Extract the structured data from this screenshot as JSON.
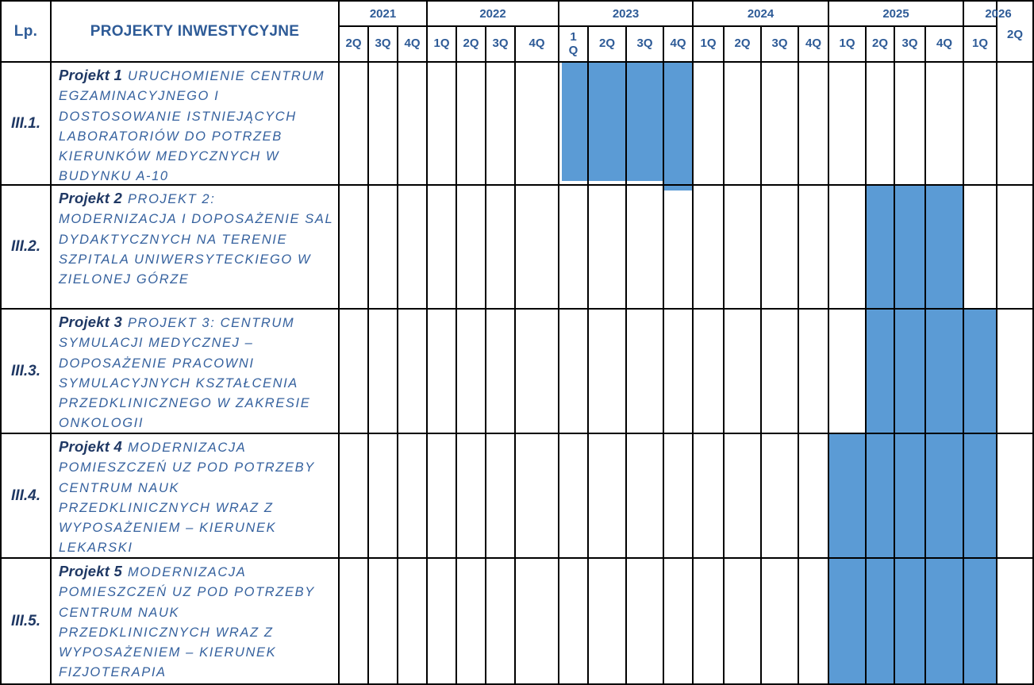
{
  "table": {
    "lp_header": "Lp.",
    "projects_header": "PROJEKTY INWESTYCYJNE"
  },
  "colors": {
    "bar_highlight": "#5B9BD5",
    "header_text": "#2E5B97",
    "project_name_text": "#1F3864",
    "description_text": "#35619E",
    "grid_line": "#000000"
  },
  "years": [
    {
      "label": "2021",
      "quarters": [
        "2Q",
        "3Q",
        "4Q"
      ]
    },
    {
      "label": "2022",
      "quarters": [
        "1Q",
        "2Q",
        "3Q",
        "4Q"
      ]
    },
    {
      "label": "2023",
      "quarters": [
        "1\nQ",
        "2Q",
        "3Q",
        "4Q"
      ]
    },
    {
      "label": "2024",
      "quarters": [
        "1Q",
        "2Q",
        "3Q",
        "4Q"
      ]
    },
    {
      "label": "2025",
      "quarters": [
        "1Q",
        "2Q",
        "3Q",
        "4Q"
      ]
    },
    {
      "label": "2026",
      "quarters": [
        "1Q",
        "2Q"
      ]
    }
  ],
  "rows": [
    {
      "id": "III.1.",
      "name": "Projekt 1",
      "description": "URUCHOMIENIE CENTRUM EGZAMINACYJNEGO I DOSTOSOWANIE ISTNIEJĄCYCH LABORATORIÓW DO POTRZEB KIERUNKÓW MEDYCZNYCH W BUDYNKU A-10",
      "start": "2023 1Q",
      "end": "2023 4Q",
      "start_index": 7,
      "end_index": 10
    },
    {
      "id": "III.2.",
      "name": "Projekt 2",
      "description": "PROJEKT 2: MODERNIZACJA I DOPOSAŻENIE SAL DYDAKTYCZNYCH NA TERENIE SZPITALA UNIWERSYTECKIEGO W ZIELONEJ GÓRZE",
      "start": "2025 2Q",
      "end": "2025 4Q",
      "start_index": 16,
      "end_index": 18
    },
    {
      "id": "III.3.",
      "name": "Projekt 3",
      "description": "PROJEKT 3: CENTRUM SYMULACJI MEDYCZNEJ – DOPOSAŻENIE PRACOWNI SYMULACYJNYCH KSZTAŁCENIA PRZEDKLINICZNEGO W ZAKRESIE ONKOLOGII",
      "start": "2025 2Q",
      "end": "2026 1Q",
      "start_index": 16,
      "end_index": 19
    },
    {
      "id": "III.4.",
      "name": "Projekt 4",
      "description": "MODERNIZACJA POMIESZCZEŃ UZ POD POTRZEBY CENTRUM NAUK PRZEDKLINICZNYCH WRAZ Z WYPOSAŻENIEM – KIERUNEK LEKARSKI",
      "start": "2025 1Q",
      "end": "2026 1Q",
      "start_index": 15,
      "end_index": 19
    },
    {
      "id": "III.5.",
      "name": "Projekt 5",
      "description": "MODERNIZACJA POMIESZCZEŃ UZ POD POTRZEBY CENTRUM NAUK PRZEDKLINICZNYCH WRAZ Z WYPOSAŻENIEM – KIERUNEK FIZJOTERAPIA",
      "start": "2025 1Q",
      "end": "2026 1Q",
      "start_index": 15,
      "end_index": 19
    }
  ],
  "chart_data": {
    "type": "table",
    "subtype": "gantt",
    "title": "PROJEKTY INWESTYCYJNE",
    "bar_color": "#5B9BD5",
    "categories": [
      "2021 2Q",
      "2021 3Q",
      "2021 4Q",
      "2022 1Q",
      "2022 2Q",
      "2022 3Q",
      "2022 4Q",
      "2023 1Q",
      "2023 2Q",
      "2023 3Q",
      "2023 4Q",
      "2024 1Q",
      "2024 2Q",
      "2024 3Q",
      "2024 4Q",
      "2025 1Q",
      "2025 2Q",
      "2025 3Q",
      "2025 4Q",
      "2026 1Q",
      "2026 2Q"
    ],
    "series": [
      {
        "name": "III.1. Projekt 1",
        "start": "2023 1Q",
        "end": "2023 4Q"
      },
      {
        "name": "III.2. Projekt 2",
        "start": "2025 2Q",
        "end": "2025 4Q"
      },
      {
        "name": "III.3. Projekt 3",
        "start": "2025 2Q",
        "end": "2026 1Q"
      },
      {
        "name": "III.4. Projekt 4",
        "start": "2025 1Q",
        "end": "2026 1Q"
      },
      {
        "name": "III.5. Projekt 5",
        "start": "2025 1Q",
        "end": "2026 1Q"
      }
    ]
  }
}
